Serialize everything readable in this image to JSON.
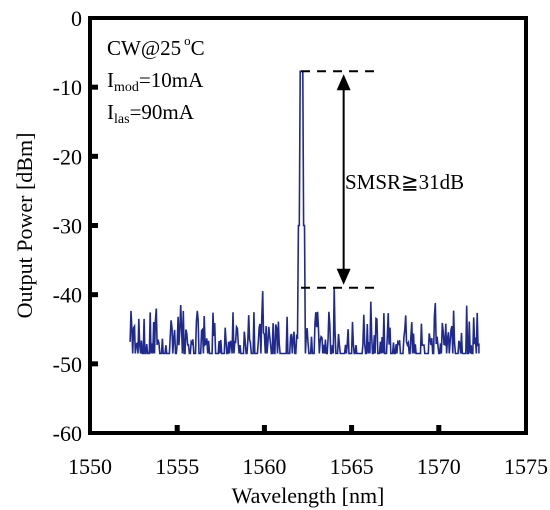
{
  "chart_data": {
    "type": "line",
    "title": "",
    "xlabel": "Wavelength [nm]",
    "ylabel": "Output  Power [dBm]",
    "xlim": [
      1550,
      1575
    ],
    "ylim": [
      -60,
      0
    ],
    "x_ticks": [
      1550,
      1555,
      1560,
      1565,
      1570,
      1575
    ],
    "y_ticks": [
      0,
      -10,
      -20,
      -30,
      -40,
      -50,
      -60
    ],
    "x_tick_labels": [
      "1550",
      "1555",
      "1560",
      "1565",
      "1570",
      "1575"
    ],
    "y_tick_labels": [
      "0",
      "-10",
      "-20",
      "-30",
      "-40",
      "-50",
      "-60"
    ],
    "grid": false,
    "series_color": "#1f2a8c",
    "noise_floor_dBm": -48.5,
    "x_range_nm": [
      1552.3,
      1572.3
    ],
    "peak": {
      "x": 1562.1,
      "y": -7.7
    },
    "side_mode_peak": {
      "x": 1564.0,
      "y": -39.0
    },
    "spurious_peaks": [
      {
        "x": 1559.9,
        "y": -39.5
      },
      {
        "x": 1566.1,
        "y": -41.0
      },
      {
        "x": 1569.8,
        "y": -41.2
      },
      {
        "x": 1555.2,
        "y": -41.5
      },
      {
        "x": 1571.6,
        "y": -41.6
      },
      {
        "x": 1553.8,
        "y": -42.0
      }
    ],
    "annotations": {
      "conditions": {
        "line1": "CW@25",
        "degree": "o",
        "line1_unit": "C",
        "line2_main": "I",
        "line2_sub": "mod",
        "line2_value": "=10mA",
        "line3_main": "I",
        "line3_sub": "las",
        "line3_value": "=90mA"
      },
      "smsr_label": "SMSR≧31dB",
      "upper_level_dBm": -7.7,
      "lower_level_dBm": -39.0,
      "dash_x_range_nm": [
        1562.1,
        1566.3
      ]
    }
  }
}
